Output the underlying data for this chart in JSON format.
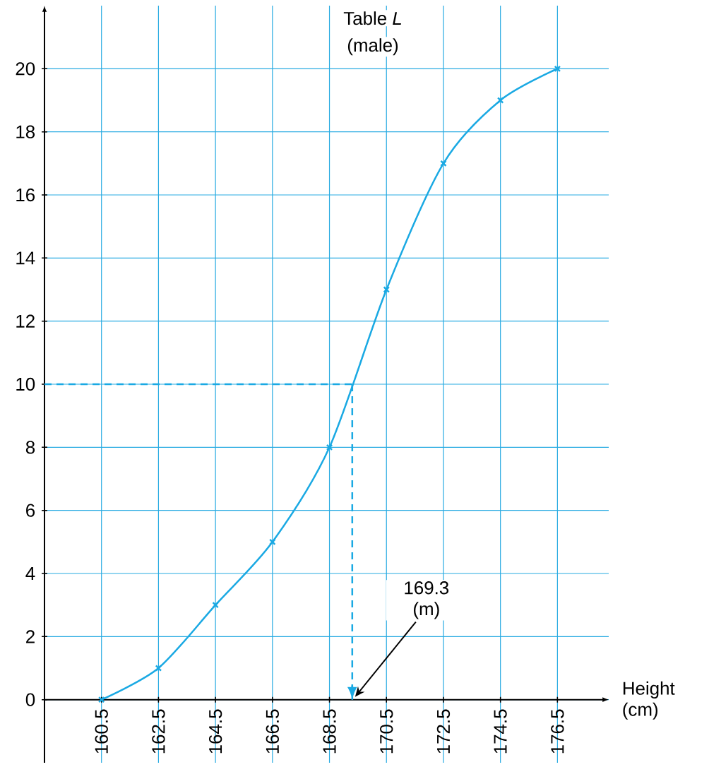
{
  "chart_data": {
    "type": "line",
    "title": "Table *L*",
    "subtitle": "(male)",
    "xlabel": "Height (cm)",
    "x": [
      160.5,
      162.5,
      164.5,
      166.5,
      168.5,
      170.5,
      172.5,
      174.5,
      176.5
    ],
    "series": [
      {
        "color": "#1aa9e3",
        "values": [
          0,
          1,
          3,
          5,
          8,
          13,
          17,
          19,
          20
        ]
      }
    ],
    "marker": "cross",
    "grid": true,
    "xlim": [
      158.5,
      178.3
    ],
    "ylim": [
      -2,
      22
    ],
    "xticks": [
      160.5,
      162.5,
      164.5,
      166.5,
      168.5,
      170.5,
      172.5,
      174.5,
      176.5
    ],
    "yticks": [
      0,
      2,
      4,
      6,
      8,
      10,
      12,
      14,
      16,
      18,
      20
    ],
    "ref_lines": [
      {
        "axis": "y",
        "value": 10,
        "color": "#1aa9e3",
        "line_style": "dashed"
      },
      {
        "axis": "x",
        "value": 169.3,
        "color": "#1aa9e3",
        "line_style": "dashed"
      }
    ],
    "annotations": [
      "169.3 (m)"
    ]
  }
}
